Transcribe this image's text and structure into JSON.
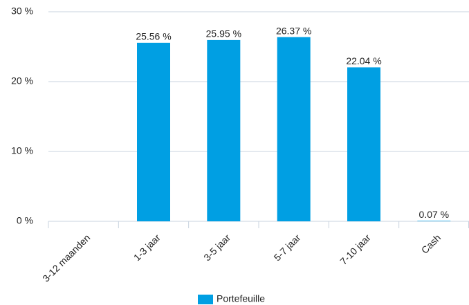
{
  "chart_data": {
    "type": "bar",
    "categories": [
      "3-12 maanden",
      "1-3 jaar",
      "3-5 jaar",
      "5-7 jaar",
      "7-10 jaar",
      "Cash"
    ],
    "series": [
      {
        "name": "Portefeuille",
        "color": "#009fe3",
        "values": [
          null,
          25.56,
          25.95,
          26.37,
          22.04,
          0.07
        ],
        "value_labels": [
          null,
          "25.56 %",
          "25.95 %",
          "26.37 %",
          "22.04 %",
          "0.07 %"
        ]
      }
    ],
    "ylim": [
      0,
      30
    ],
    "yticks": [
      {
        "value": 0,
        "label": "0 %"
      },
      {
        "value": 10,
        "label": "10 %"
      },
      {
        "value": 20,
        "label": "20 %"
      },
      {
        "value": 30,
        "label": "30 %"
      }
    ],
    "grid": true,
    "legend": "bottom"
  }
}
